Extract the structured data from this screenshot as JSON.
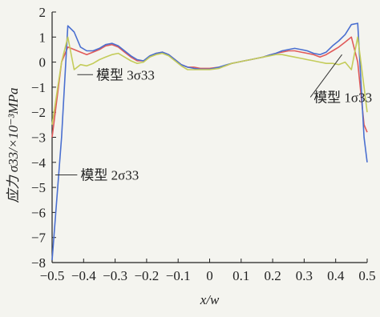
{
  "chart_data": {
    "type": "line",
    "xlabel": "x/w",
    "ylabel": "应力 σ33/×10⁻³MPa",
    "xlim": [
      -0.5,
      0.5
    ],
    "ylim": [
      -8,
      2
    ],
    "xticks": [
      "-0.5",
      "-0.4",
      "-0.3",
      "-0.2",
      "-0.1",
      "0",
      "0.1",
      "0.2",
      "0.3",
      "0.4",
      "0.5"
    ],
    "yticks": [
      "2",
      "1",
      "0",
      "-1",
      "-2",
      "-3",
      "-4",
      "-5",
      "-6",
      "-7",
      "-8"
    ],
    "grid": false,
    "x": [
      -0.5,
      -0.47,
      -0.45,
      -0.43,
      -0.41,
      -0.39,
      -0.37,
      -0.35,
      -0.33,
      -0.31,
      -0.29,
      -0.27,
      -0.25,
      -0.23,
      -0.21,
      -0.19,
      -0.17,
      -0.15,
      -0.13,
      -0.11,
      -0.09,
      -0.07,
      -0.05,
      -0.03,
      0.0,
      0.03,
      0.05,
      0.07,
      0.09,
      0.11,
      0.13,
      0.15,
      0.17,
      0.19,
      0.21,
      0.23,
      0.25,
      0.27,
      0.29,
      0.31,
      0.33,
      0.35,
      0.37,
      0.39,
      0.41,
      0.43,
      0.45,
      0.47,
      0.49,
      0.5
    ],
    "series": [
      {
        "name": "模型 1σ33",
        "color": "#e05a5a",
        "values": [
          -3.0,
          0.0,
          0.6,
          0.5,
          0.4,
          0.3,
          0.4,
          0.5,
          0.65,
          0.7,
          0.6,
          0.4,
          0.2,
          0.05,
          0.05,
          0.2,
          0.35,
          0.4,
          0.3,
          0.1,
          -0.1,
          -0.2,
          -0.2,
          -0.25,
          -0.25,
          -0.2,
          -0.15,
          -0.05,
          0.0,
          0.05,
          0.1,
          0.15,
          0.2,
          0.28,
          0.35,
          0.4,
          0.45,
          0.45,
          0.4,
          0.35,
          0.3,
          0.2,
          0.3,
          0.45,
          0.6,
          0.8,
          1.0,
          0.0,
          -2.5,
          -2.8
        ]
      },
      {
        "name": "模型 2σ33",
        "color": "#4a6fd0",
        "values": [
          -7.9,
          -3.0,
          1.45,
          1.2,
          0.6,
          0.45,
          0.45,
          0.55,
          0.7,
          0.75,
          0.65,
          0.45,
          0.25,
          0.1,
          0.05,
          0.25,
          0.35,
          0.4,
          0.3,
          0.1,
          -0.1,
          -0.2,
          -0.25,
          -0.28,
          -0.28,
          -0.2,
          -0.12,
          -0.05,
          0.0,
          0.05,
          0.1,
          0.15,
          0.2,
          0.28,
          0.35,
          0.45,
          0.5,
          0.55,
          0.5,
          0.45,
          0.35,
          0.3,
          0.4,
          0.65,
          0.85,
          1.1,
          1.5,
          1.55,
          -3.0,
          -4.0
        ]
      },
      {
        "name": "模型 3σ33",
        "color": "#c4cc5a",
        "values": [
          -2.5,
          0.0,
          1.0,
          -0.3,
          -0.1,
          -0.15,
          -0.05,
          0.1,
          0.2,
          0.3,
          0.35,
          0.2,
          0.05,
          -0.05,
          0.0,
          0.2,
          0.3,
          0.35,
          0.25,
          0.05,
          -0.15,
          -0.3,
          -0.3,
          -0.3,
          -0.3,
          -0.25,
          -0.15,
          -0.05,
          0.0,
          0.05,
          0.1,
          0.15,
          0.2,
          0.25,
          0.3,
          0.3,
          0.25,
          0.2,
          0.15,
          0.1,
          0.05,
          0.0,
          -0.05,
          -0.05,
          -0.1,
          0.0,
          -0.3,
          1.0,
          -1.0,
          -2.0
        ]
      }
    ],
    "annotations": [
      {
        "text": "模型 3σ33",
        "x": -0.42,
        "y": -0.5,
        "tx": -0.36,
        "ty": -0.5
      },
      {
        "text": "模型 1σ33",
        "x": 0.42,
        "y": 0.3,
        "tx": 0.33,
        "ty": -1.4
      },
      {
        "text": "模型 2σ33",
        "x": -0.49,
        "y": -4.5,
        "tx": -0.41,
        "ty": -4.5
      }
    ]
  }
}
